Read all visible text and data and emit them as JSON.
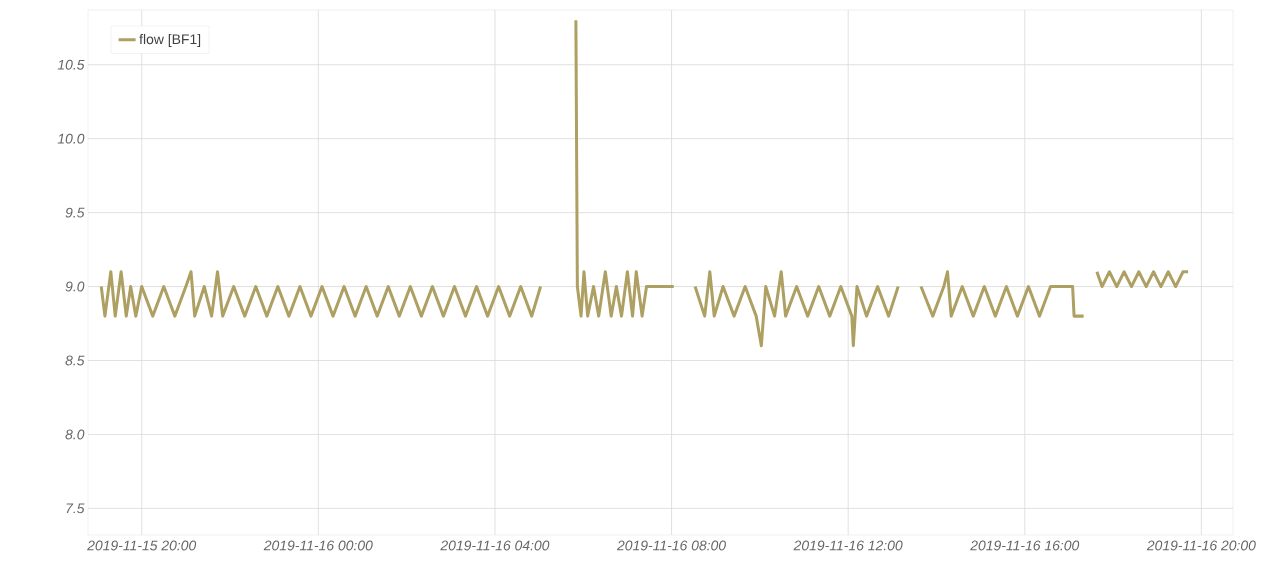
{
  "chart_data": {
    "type": "line",
    "series": [
      {
        "name": "flow [BF1]",
        "color": "#ada062",
        "x": [
          "2019-11-15T19:05",
          "2019-11-15T19:10",
          "2019-11-15T19:18",
          "2019-11-15T19:24",
          "2019-11-15T19:32",
          "2019-11-15T19:39",
          "2019-11-15T19:45",
          "2019-11-15T19:52",
          "2019-11-15T20:00",
          "2019-11-15T20:15",
          "2019-11-15T20:30",
          "2019-11-15T20:45",
          "2019-11-15T21:00",
          "2019-11-15T21:07",
          "2019-11-15T21:12",
          "2019-11-15T21:25",
          "2019-11-15T21:35",
          "2019-11-15T21:43",
          "2019-11-15T21:50",
          "2019-11-15T22:05",
          "2019-11-15T22:20",
          "2019-11-15T22:35",
          "2019-11-15T22:50",
          "2019-11-15T23:05",
          "2019-11-15T23:20",
          "2019-11-15T23:35",
          "2019-11-15T23:50",
          "2019-11-16T00:05",
          "2019-11-16T00:20",
          "2019-11-16T00:35",
          "2019-11-16T00:50",
          "2019-11-16T01:05",
          "2019-11-16T01:20",
          "2019-11-16T01:35",
          "2019-11-16T01:50",
          "2019-11-16T02:05",
          "2019-11-16T02:20",
          "2019-11-16T02:35",
          "2019-11-16T02:50",
          "2019-11-16T03:05",
          "2019-11-16T03:20",
          "2019-11-16T03:35",
          "2019-11-16T03:50",
          "2019-11-16T04:05",
          "2019-11-16T04:20",
          "2019-11-16T04:35",
          "2019-11-16T04:50",
          "2019-11-16T05:02",
          "2019-11-16T05:04",
          "2019-11-16T05:49",
          "2019-11-16T05:50",
          "2019-11-16T05:52",
          "2019-11-16T05:57",
          "2019-11-16T06:01",
          "2019-11-16T06:06",
          "2019-11-16T06:14",
          "2019-11-16T06:21",
          "2019-11-16T06:30",
          "2019-11-16T06:38",
          "2019-11-16T06:45",
          "2019-11-16T06:52",
          "2019-11-16T07:00",
          "2019-11-16T07:07",
          "2019-11-16T07:12",
          "2019-11-16T07:20",
          "2019-11-16T07:26",
          "2019-11-16T08:03",
          "2019-11-16T08:04",
          "2019-11-16T08:31",
          "2019-11-16T08:32",
          "2019-11-16T08:45",
          "2019-11-16T08:52",
          "2019-11-16T08:58",
          "2019-11-16T09:10",
          "2019-11-16T09:25",
          "2019-11-16T09:40",
          "2019-11-16T09:55",
          "2019-11-16T10:02",
          "2019-11-16T10:08",
          "2019-11-16T10:20",
          "2019-11-16T10:29",
          "2019-11-16T10:35",
          "2019-11-16T10:50",
          "2019-11-16T11:05",
          "2019-11-16T11:20",
          "2019-11-16T11:35",
          "2019-11-16T11:50",
          "2019-11-16T12:05",
          "2019-11-16T12:07",
          "2019-11-16T12:12",
          "2019-11-16T12:25",
          "2019-11-16T12:40",
          "2019-11-16T12:55",
          "2019-11-16T13:08",
          "2019-11-16T13:10",
          "2019-11-16T13:38",
          "2019-11-16T13:39",
          "2019-11-16T13:55",
          "2019-11-16T14:10",
          "2019-11-16T14:15",
          "2019-11-16T14:20",
          "2019-11-16T14:35",
          "2019-11-16T14:50",
          "2019-11-16T15:05",
          "2019-11-16T15:20",
          "2019-11-16T15:35",
          "2019-11-16T15:50",
          "2019-11-16T16:05",
          "2019-11-16T16:20",
          "2019-11-16T16:35",
          "2019-11-16T16:50",
          "2019-11-16T17:05",
          "2019-11-16T17:07",
          "2019-11-16T17:20",
          "2019-11-16T17:22",
          "2019-11-16T17:24",
          "2019-11-16T17:35",
          "2019-11-16T17:36",
          "2019-11-16T17:38",
          "2019-11-16T17:45",
          "2019-11-16T17:55",
          "2019-11-16T18:05",
          "2019-11-16T18:15",
          "2019-11-16T18:25",
          "2019-11-16T18:35",
          "2019-11-16T18:45",
          "2019-11-16T18:55",
          "2019-11-16T19:05",
          "2019-11-16T19:15",
          "2019-11-16T19:25",
          "2019-11-16T19:35",
          "2019-11-16T19:42"
        ],
        "values": [
          9.0,
          8.8,
          9.1,
          8.8,
          9.1,
          8.8,
          9.0,
          8.8,
          9.0,
          8.8,
          9.0,
          8.8,
          9.0,
          9.1,
          8.8,
          9.0,
          8.8,
          9.1,
          8.8,
          9.0,
          8.8,
          9.0,
          8.8,
          9.0,
          8.8,
          9.0,
          8.8,
          9.0,
          8.8,
          9.0,
          8.8,
          9.0,
          8.8,
          9.0,
          8.8,
          9.0,
          8.8,
          9.0,
          8.8,
          9.0,
          8.8,
          9.0,
          8.8,
          9.0,
          8.8,
          9.0,
          8.8,
          9.0,
          null,
          null,
          10.8,
          9.0,
          8.8,
          9.1,
          8.8,
          9.0,
          8.8,
          9.1,
          8.8,
          9.0,
          8.8,
          9.1,
          8.8,
          9.1,
          8.8,
          9.0,
          9.0,
          null,
          null,
          9.0,
          8.8,
          9.1,
          8.8,
          9.0,
          8.8,
          9.0,
          8.8,
          8.6,
          9.0,
          8.8,
          9.1,
          8.8,
          9.0,
          8.8,
          9.0,
          8.8,
          9.0,
          8.8,
          8.6,
          9.0,
          8.8,
          9.0,
          8.8,
          9.0,
          null,
          null,
          9.0,
          8.8,
          9.0,
          9.1,
          8.8,
          9.0,
          8.8,
          9.0,
          8.8,
          9.0,
          8.8,
          9.0,
          8.8,
          9.0,
          9.0,
          9.0,
          8.8,
          8.8,
          null,
          null,
          null,
          null,
          9.1,
          9.0,
          9.1,
          9.0,
          9.1,
          9.0,
          9.1,
          9.0,
          9.1,
          9.0,
          9.1,
          9.0,
          9.1,
          9.1
        ]
      }
    ],
    "xlim": [
      "2019-11-15T18:47",
      "2019-11-16T20:43"
    ],
    "xticks": [
      {
        "value": "2019-11-15T20:00",
        "label": "2019-11-15 20:00"
      },
      {
        "value": "2019-11-16T00:00",
        "label": "2019-11-16 00:00"
      },
      {
        "value": "2019-11-16T04:00",
        "label": "2019-11-16 04:00"
      },
      {
        "value": "2019-11-16T08:00",
        "label": "2019-11-16 08:00"
      },
      {
        "value": "2019-11-16T12:00",
        "label": "2019-11-16 12:00"
      },
      {
        "value": "2019-11-16T16:00",
        "label": "2019-11-16 16:00"
      },
      {
        "value": "2019-11-16T20:00",
        "label": "2019-11-16 20:00"
      }
    ],
    "ylim": [
      7.32,
      10.87
    ],
    "yticks": [
      7.5,
      {
        "value": 8,
        "label": "8.0"
      },
      8.5,
      {
        "value": 9,
        "label": "9.0"
      },
      9.5,
      {
        "value": 10,
        "label": "10.0"
      },
      10.5
    ],
    "grid": true,
    "legend": "top left",
    "marker": "none",
    "line_style": "solid"
  }
}
